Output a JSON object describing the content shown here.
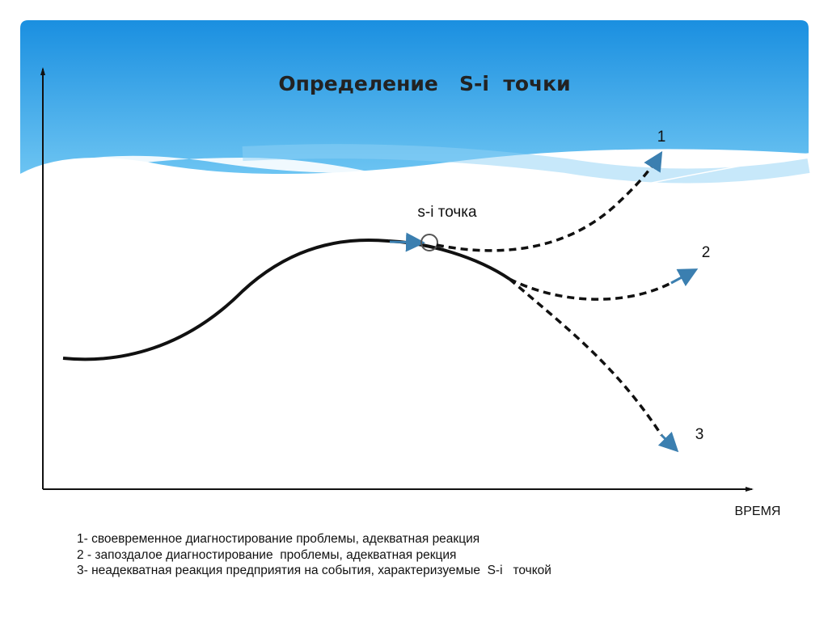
{
  "header": {
    "title": "Определение   S-i  точки"
  },
  "diagram": {
    "point_label": "s-i точка",
    "curves": [
      {
        "label": "1"
      },
      {
        "label": "2"
      },
      {
        "label": "3"
      }
    ],
    "x_axis_label": "ВРЕМЯ"
  },
  "legend": {
    "lines": [
      "1- своевременное диагностирование проблемы, адекватная реакция",
      "2 - запоздалое диагностирование  проблемы, адекватная рекция",
      "3- неадекватная реакция предприятия на события, характеризуемые  S-i   точкой"
    ]
  }
}
